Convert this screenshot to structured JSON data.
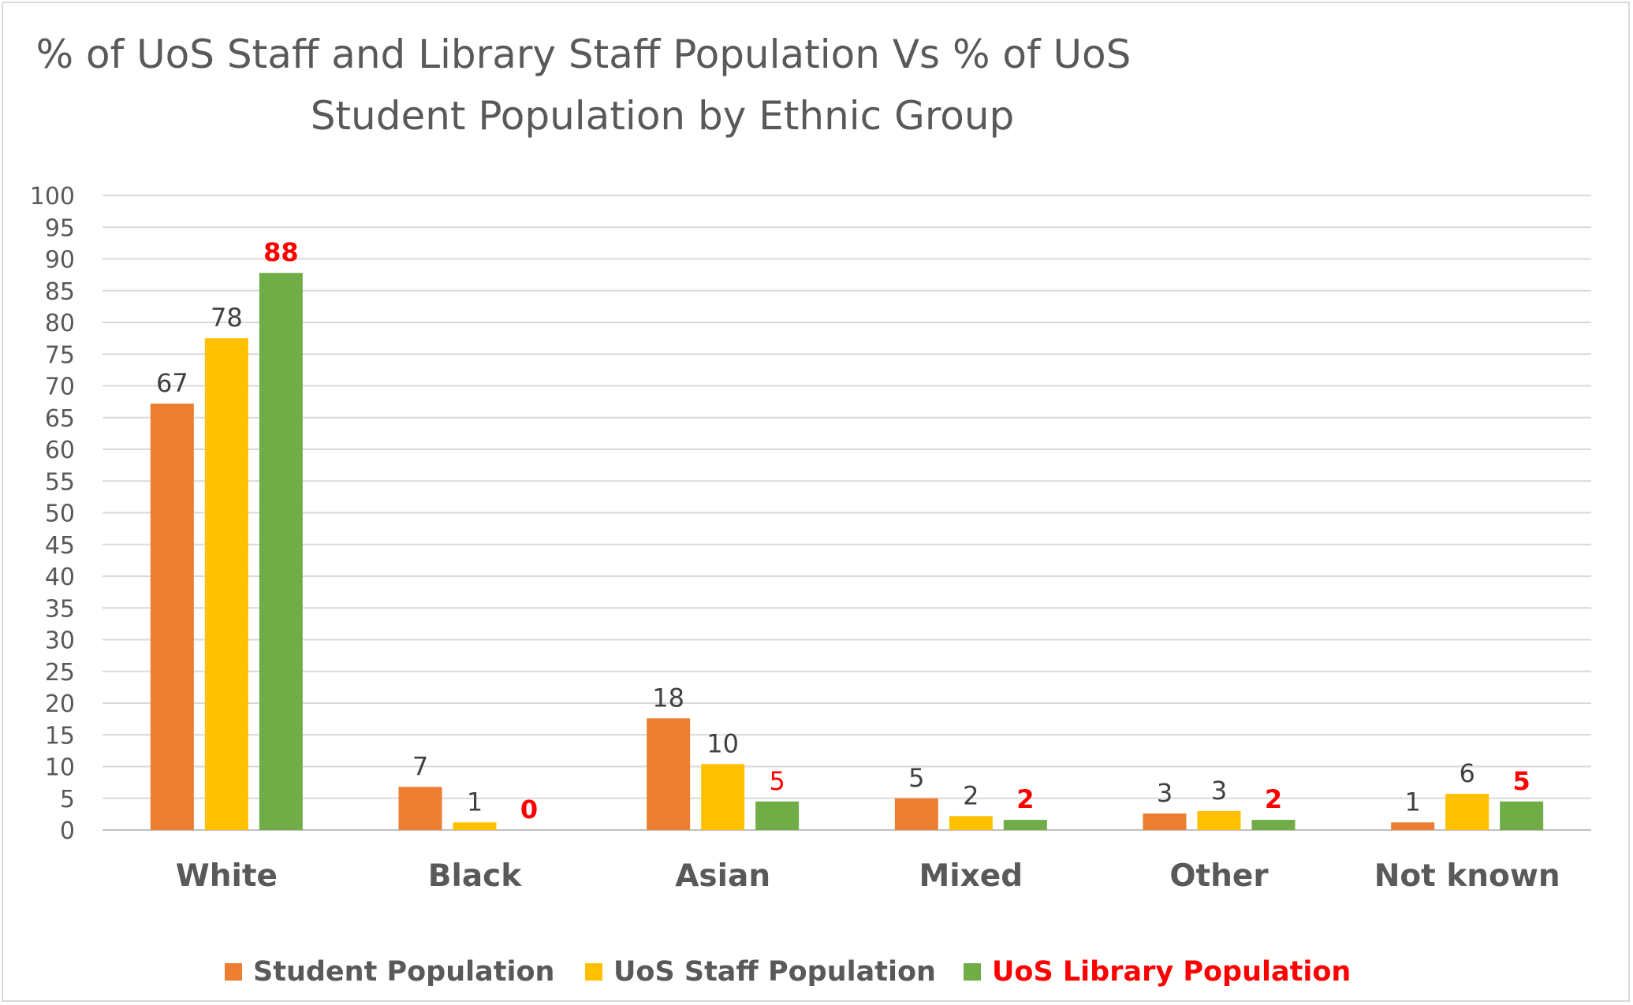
{
  "chart_data": {
    "type": "bar",
    "title": "% of UoS Staff and Library Staff Population Vs % of UoS Student Population by Ethnic Group",
    "title_lines": [
      "% of UoS Staff and Library Staff Population Vs % of UoS",
      "Student Population by Ethnic Group"
    ],
    "categories": [
      "White",
      "Black",
      "Asian",
      "Mixed",
      "Other",
      "Not known"
    ],
    "series": [
      {
        "name": "Student Population",
        "color": "#ed7d31",
        "values": [
          67.2,
          6.8,
          17.6,
          5.0,
          2.6,
          1.2
        ],
        "labels": [
          "67",
          "7",
          "18",
          "5",
          "3",
          "1"
        ],
        "label_color": "#404040",
        "label_bold": false
      },
      {
        "name": "UoS Staff Population",
        "color": "#ffc000",
        "values": [
          77.5,
          1.2,
          10.4,
          2.2,
          3.0,
          5.7
        ],
        "labels": [
          "78",
          "1",
          "10",
          "2",
          "3",
          "6"
        ],
        "label_color": "#404040",
        "label_bold": false
      },
      {
        "name": "UoS Library Population",
        "color": "#70ad47",
        "values": [
          87.8,
          0,
          4.5,
          1.6,
          1.6,
          4.5
        ],
        "labels": [
          "88",
          "0",
          "5",
          "2",
          "2",
          "5"
        ],
        "label_color": "#ff0000",
        "label_bold": [
          true,
          true,
          false,
          true,
          true,
          true
        ],
        "legend_text_color": "#ff0000"
      }
    ],
    "ylim": [
      0,
      100
    ],
    "ytick_step": 5,
    "grid": true,
    "legend_position": "bottom"
  }
}
